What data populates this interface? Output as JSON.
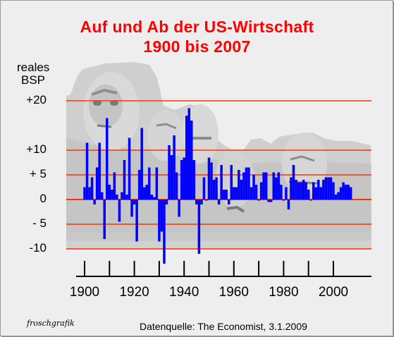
{
  "chart_data": {
    "type": "bar",
    "title": "Auf und Ab der US-Wirtschaft",
    "subtitle": "1900 bis 2007",
    "ylabel": [
      "reales",
      "BSP"
    ],
    "ylim": [
      -12.8,
      20
    ],
    "xlim": [
      1900,
      2007
    ],
    "y_ticks": [
      {
        "value": 20,
        "label": "+20"
      },
      {
        "value": 10,
        "label": "+10"
      },
      {
        "value": 5,
        "label": "+ 5"
      },
      {
        "value": 0,
        "label": "0"
      },
      {
        "value": -5,
        "label": "- 5"
      },
      {
        "value": -10,
        "label": "-10"
      }
    ],
    "x_ticks": [
      1900,
      1920,
      1940,
      1960,
      1980,
      2000
    ],
    "x_minor_ticks": [
      1910,
      1930,
      1950,
      1970,
      1990
    ],
    "grid": true,
    "colors": {
      "bars": "#0000ff",
      "gridlines": "#ff3300",
      "title": "#ff0000"
    },
    "x": [
      1900,
      1901,
      1902,
      1903,
      1904,
      1905,
      1906,
      1907,
      1908,
      1909,
      1910,
      1911,
      1912,
      1913,
      1914,
      1915,
      1916,
      1917,
      1918,
      1919,
      1920,
      1921,
      1922,
      1923,
      1924,
      1925,
      1926,
      1927,
      1928,
      1929,
      1930,
      1931,
      1932,
      1933,
      1934,
      1935,
      1936,
      1937,
      1938,
      1939,
      1940,
      1941,
      1942,
      1943,
      1944,
      1945,
      1946,
      1947,
      1948,
      1949,
      1950,
      1951,
      1952,
      1953,
      1954,
      1955,
      1956,
      1957,
      1958,
      1959,
      1960,
      1961,
      1962,
      1963,
      1964,
      1965,
      1966,
      1967,
      1968,
      1969,
      1970,
      1971,
      1972,
      1973,
      1974,
      1975,
      1976,
      1977,
      1978,
      1979,
      1980,
      1981,
      1982,
      1983,
      1984,
      1985,
      1986,
      1987,
      1988,
      1989,
      1990,
      1991,
      1992,
      1993,
      1994,
      1995,
      1996,
      1997,
      1998,
      1999,
      2000,
      2001,
      2002,
      2003,
      2004,
      2005,
      2006,
      2007
    ],
    "values": [
      2.5,
      11.5,
      2.5,
      4.5,
      -1,
      6.5,
      11.5,
      1.5,
      -8,
      16.5,
      3,
      2,
      5.5,
      1,
      -4.5,
      1.5,
      8,
      1,
      12.5,
      -3.5,
      -1,
      -8.5,
      6,
      14.5,
      2.5,
      3,
      6.5,
      1,
      0.5,
      6.5,
      -8.5,
      -6.5,
      -13,
      -1,
      11,
      9,
      13,
      5.5,
      -3.5,
      8,
      8.5,
      17,
      18.5,
      16,
      8,
      -1,
      -11,
      -1,
      4.5,
      0,
      8.5,
      7.5,
      4,
      4.5,
      -1,
      7,
      2,
      2,
      -1,
      7,
      2.5,
      2.5,
      6,
      4,
      5.5,
      6.5,
      6.5,
      2.5,
      5,
      3,
      0,
      3.5,
      5.5,
      5.5,
      -0.5,
      -0.5,
      5.5,
      4.5,
      5.5,
      3,
      0,
      2.5,
      -2,
      4.5,
      7,
      4,
      3.5,
      3.5,
      4,
      3.5,
      2,
      0,
      3.5,
      2.5,
      4,
      2.5,
      4,
      4.5,
      4.5,
      4.5,
      3.5,
      1,
      1.5,
      2.5,
      3.5,
      3,
      3,
      2.5
    ]
  },
  "footer": {
    "credit": "froschgrafik",
    "source": "Datenquelle: The Economist, 3.1.2009"
  }
}
